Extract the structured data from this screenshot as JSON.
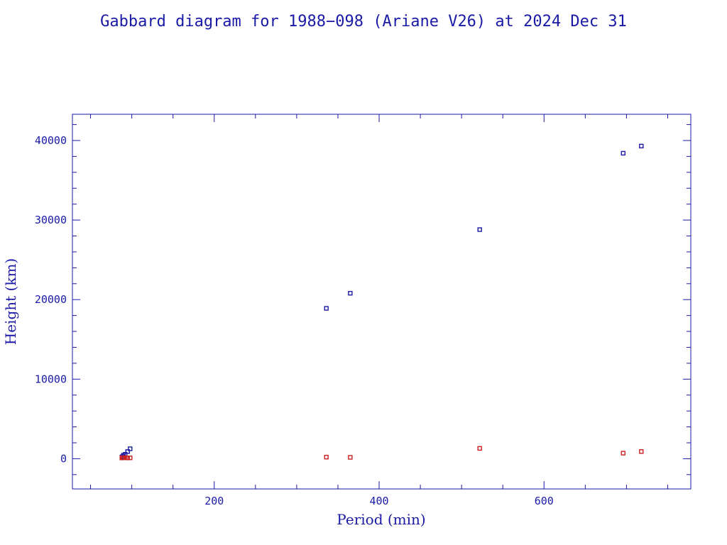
{
  "chart_data": {
    "type": "scatter",
    "title": "Gabbard diagram for 1988−098 (Ariane V26) at 2024 Dec 31",
    "xlabel": "Period (min)",
    "ylabel": "Height (km)",
    "xlim": [
      28,
      778
    ],
    "ylim": [
      -3800,
      43300
    ],
    "x_ticks": [
      200,
      400,
      600
    ],
    "x_minor_step": 50,
    "y_ticks": [
      0,
      10000,
      20000,
      30000,
      40000
    ],
    "y_minor_step": 2000,
    "grid": false,
    "colors": {
      "frame": "#1a1aa6",
      "apogee": "#1a1aa6",
      "perigee": "#cc2020"
    },
    "series": [
      {
        "role": "apogee",
        "points": [
          {
            "x": 88,
            "y": 200
          },
          {
            "x": 89,
            "y": 300
          },
          {
            "x": 90,
            "y": 450
          },
          {
            "x": 92,
            "y": 550
          },
          {
            "x": 95,
            "y": 900
          },
          {
            "x": 98,
            "y": 1250
          },
          {
            "x": 336,
            "y": 18900
          },
          {
            "x": 365,
            "y": 20800
          },
          {
            "x": 522,
            "y": 28800
          },
          {
            "x": 696,
            "y": 38400
          },
          {
            "x": 718,
            "y": 39300
          }
        ]
      },
      {
        "role": "perigee",
        "points": [
          {
            "x": 88,
            "y": 100
          },
          {
            "x": 89,
            "y": 120
          },
          {
            "x": 90,
            "y": 130
          },
          {
            "x": 92,
            "y": 140
          },
          {
            "x": 95,
            "y": 100
          },
          {
            "x": 98,
            "y": 110
          },
          {
            "x": 336,
            "y": 200
          },
          {
            "x": 365,
            "y": 170
          },
          {
            "x": 522,
            "y": 1300
          },
          {
            "x": 696,
            "y": 700
          },
          {
            "x": 718,
            "y": 900
          }
        ]
      }
    ]
  }
}
